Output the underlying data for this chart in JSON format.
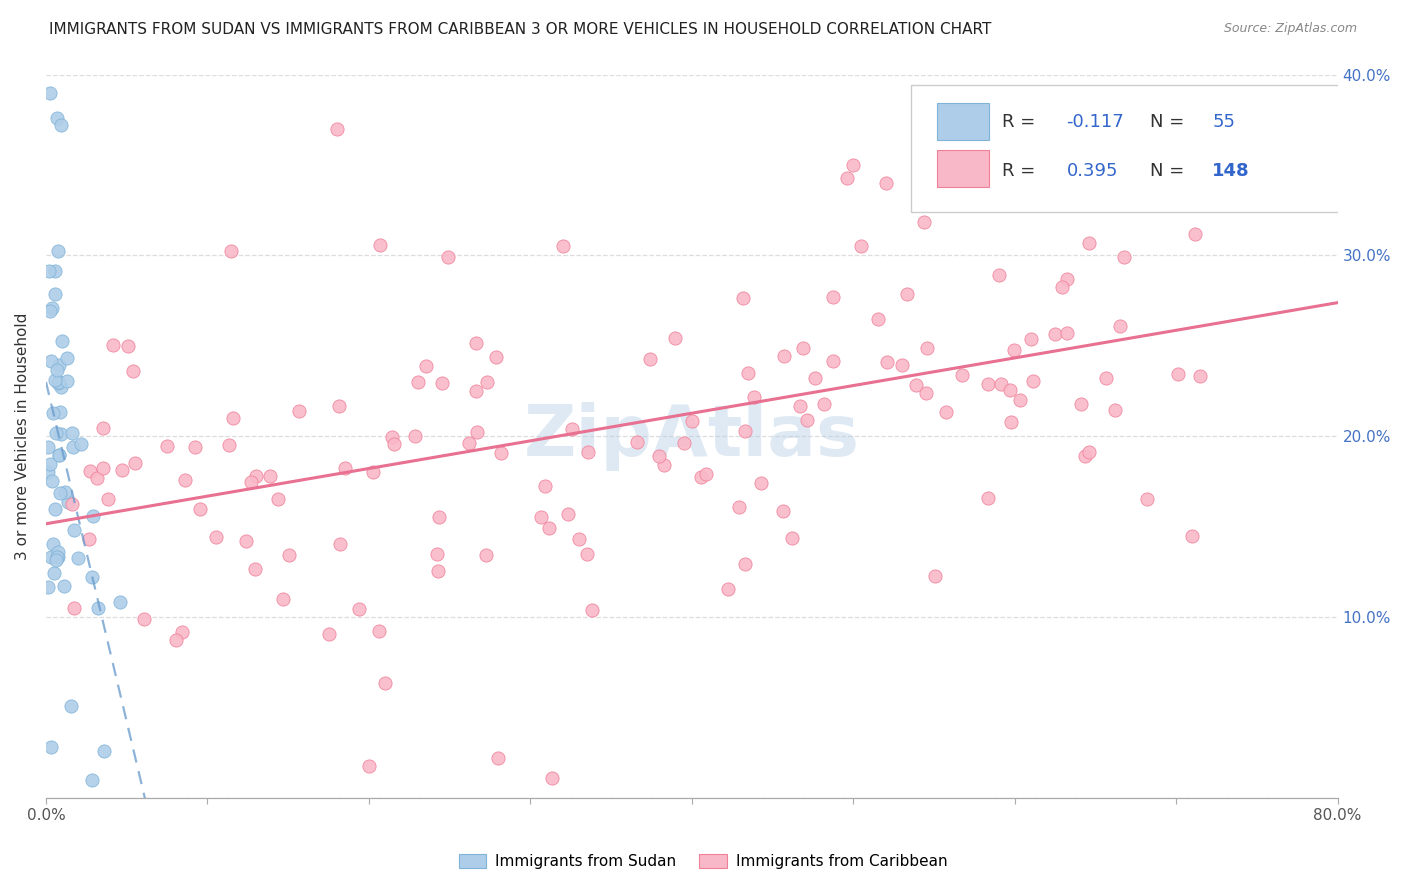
{
  "title": "IMMIGRANTS FROM SUDAN VS IMMIGRANTS FROM CARIBBEAN 3 OR MORE VEHICLES IN HOUSEHOLD CORRELATION CHART",
  "source": "Source: ZipAtlas.com",
  "ylabel": "3 or more Vehicles in Household",
  "xlim": [
    0.0,
    0.8
  ],
  "ylim": [
    0.0,
    0.4
  ],
  "sudan_R": -0.117,
  "sudan_N": 55,
  "caribbean_R": 0.395,
  "caribbean_N": 148,
  "sudan_color": "#aecde8",
  "sudan_edge": "#7fb3d8",
  "caribbean_color": "#f9b8c8",
  "caribbean_edge": "#f08098",
  "sudan_line_color": "#6699cc",
  "caribbean_line_color": "#e87090",
  "watermark": "ZipAtlas",
  "legend_text_color": "#3366cc",
  "title_color": "#222222",
  "source_color": "#888888",
  "ylabel_color": "#333333",
  "grid_color": "#dddddd",
  "axis_color": "#aaaaaa",
  "right_tick_color": "#4472C4"
}
